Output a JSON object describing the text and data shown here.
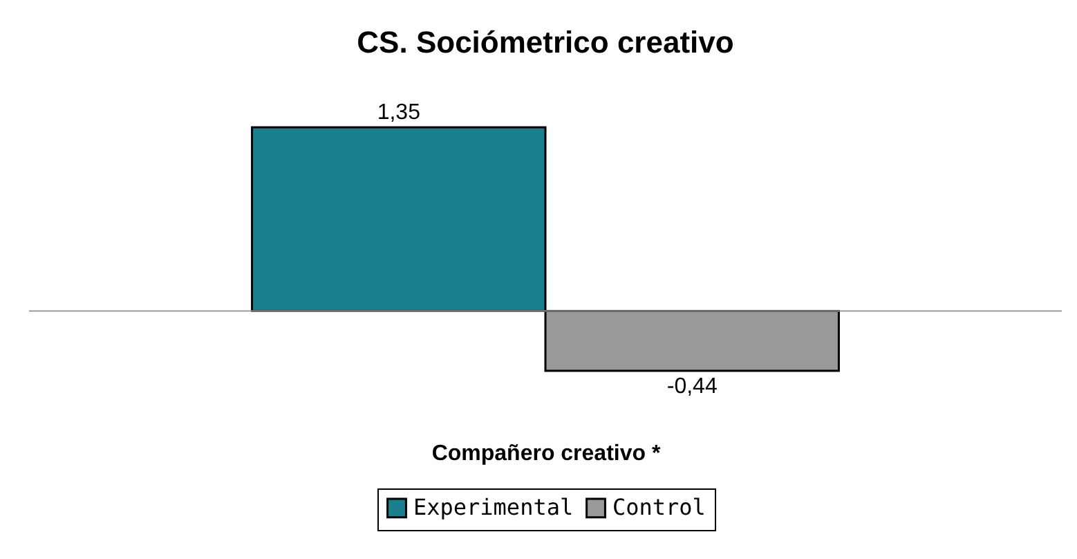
{
  "chart_data": {
    "type": "bar",
    "title": "CS. Sociómetrico creativo",
    "xlabel": "Compañero creativo  *",
    "categories": [
      null
    ],
    "legend": "bottom",
    "grid": false,
    "series": [
      {
        "name": "Experimental",
        "color": "#1b7f8e",
        "values": [
          1.35
        ],
        "value_labels": [
          "1,35"
        ]
      },
      {
        "name": "Control",
        "color": "#999999",
        "values": [
          -0.44
        ],
        "value_labels": [
          "-0,44"
        ]
      }
    ]
  }
}
